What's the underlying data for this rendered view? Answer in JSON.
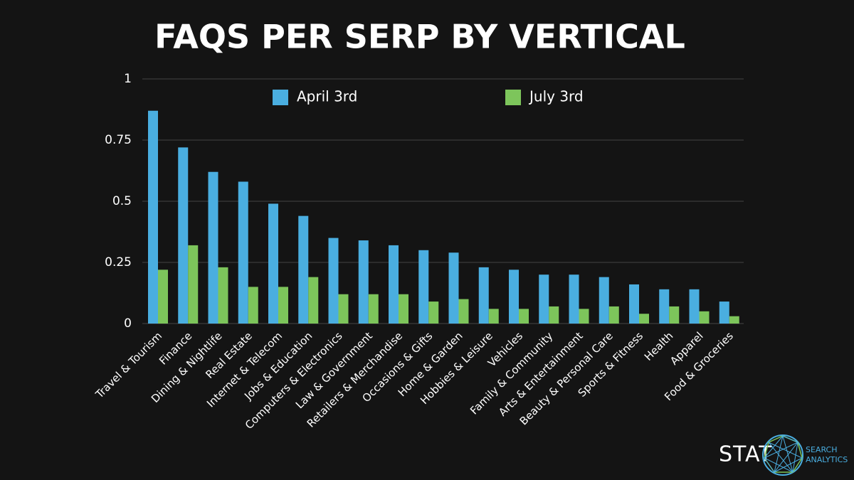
{
  "chart_data": {
    "type": "bar",
    "title": "FAQS PER SERP BY VERTICAL",
    "categories": [
      "Travel & Tourism",
      "Finance",
      "Dining & Nightlife",
      "Real Estate",
      "Internet & Telecom",
      "Jobs & Education",
      "Computers & Electronics",
      "Law & Government",
      "Retailers & Merchandise",
      "Occasions & Gifts",
      "Home & Garden",
      "Hobbies & Leisure",
      "Vehicles",
      "Family & Community",
      "Arts & Entertainment",
      "Beauty & Personal Care",
      "Sports & Fitness",
      "Health",
      "Apparel",
      "Food & Groceries"
    ],
    "series": [
      {
        "name": "April 3rd",
        "color": "#4aaee0",
        "values": [
          0.87,
          0.72,
          0.62,
          0.58,
          0.49,
          0.44,
          0.35,
          0.34,
          0.32,
          0.3,
          0.29,
          0.23,
          0.22,
          0.2,
          0.2,
          0.19,
          0.16,
          0.14,
          0.14,
          0.09
        ]
      },
      {
        "name": "July 3rd",
        "color": "#7dc55b",
        "values": [
          0.22,
          0.32,
          0.23,
          0.15,
          0.15,
          0.19,
          0.12,
          0.12,
          0.12,
          0.09,
          0.1,
          0.06,
          0.06,
          0.07,
          0.06,
          0.07,
          0.04,
          0.07,
          0.05,
          0.03
        ]
      }
    ],
    "ylim": [
      0,
      1
    ],
    "yticks": [
      0,
      0.25,
      0.5,
      0.75,
      1
    ],
    "grid": true,
    "legend": "top"
  },
  "logo": {
    "name": "STAT",
    "tagline_1": "SEARCH",
    "tagline_2": "ANALYTICS"
  }
}
